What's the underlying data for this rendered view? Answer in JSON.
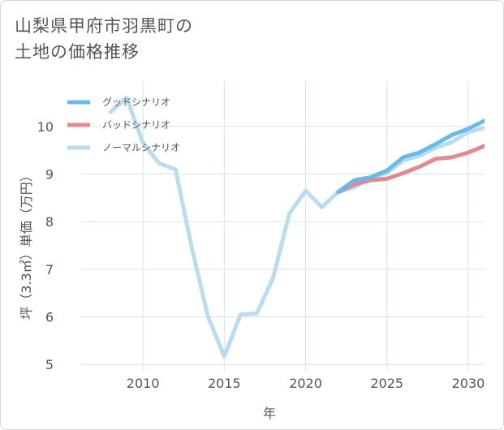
{
  "title": {
    "line1": "山梨県甲府市羽黒町の",
    "line2": "土地の価格推移"
  },
  "colors": {
    "good": "#6bb8ea",
    "bad": "#e08a92",
    "normal": "#b9dcef",
    "grid": "#d5e3ec",
    "text": "#555555"
  },
  "chart_data": {
    "type": "line",
    "title": "山梨県甲府市羽黒町の土地の価格推移",
    "xlabel": "年",
    "ylabel": "坪（3.3㎡）単価（万円）",
    "xlim": [
      2006.2,
      2031
    ],
    "ylim": [
      4.85,
      10.95
    ],
    "xticks": [
      2010,
      2015,
      2020,
      2025,
      2030
    ],
    "yticks": [
      5,
      6,
      7,
      8,
      9,
      10
    ],
    "grid": true,
    "legend_position": "top-left",
    "series": [
      {
        "name": "グッドシナリオ",
        "color": "#6bb8ea",
        "x": [
          2022,
          2023,
          2024,
          2025,
          2026,
          2027,
          2028,
          2029,
          2030,
          2031
        ],
        "y": [
          8.62,
          8.87,
          8.93,
          9.07,
          9.35,
          9.45,
          9.63,
          9.82,
          9.95,
          10.12
        ]
      },
      {
        "name": "バッドシナリオ",
        "color": "#e08a92",
        "x": [
          2022,
          2023,
          2024,
          2025,
          2026,
          2027,
          2028,
          2029,
          2030,
          2031
        ],
        "y": [
          8.62,
          8.78,
          8.87,
          8.9,
          9.02,
          9.15,
          9.32,
          9.35,
          9.45,
          9.59
        ]
      },
      {
        "name": "ノーマルシナリオ",
        "color": "#b9dcef",
        "x": [
          2008,
          2009,
          2010,
          2011,
          2012,
          2013,
          2014,
          2015,
          2016,
          2017,
          2018,
          2019,
          2020,
          2021,
          2022,
          2023,
          2024,
          2025,
          2026,
          2027,
          2028,
          2029,
          2030,
          2031
        ],
        "y": [
          10.3,
          10.6,
          9.65,
          9.22,
          9.1,
          7.45,
          6.0,
          5.17,
          6.05,
          6.07,
          6.82,
          8.17,
          8.65,
          8.3,
          8.62,
          8.72,
          8.92,
          9.02,
          9.28,
          9.38,
          9.55,
          9.67,
          9.88,
          9.97
        ]
      }
    ]
  }
}
